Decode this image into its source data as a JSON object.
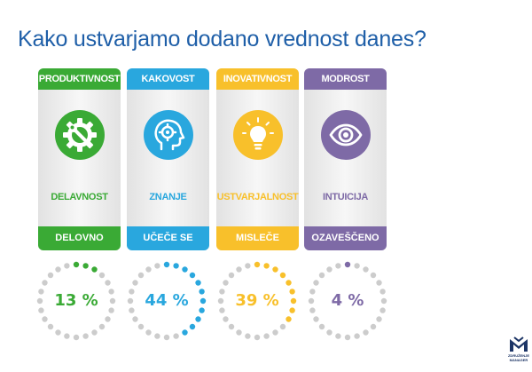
{
  "title": "Kako ustvarjamo dodano vrednost danes?",
  "cards": [
    {
      "top": "PRODUKTIVNOST",
      "middle": "DELAVNOST",
      "bottom": "DELOVNO",
      "icon": "gear-wrench-icon",
      "color": "#3aaa35",
      "percent_label": "13 %",
      "percent_value": 13
    },
    {
      "top": "KAKOVOST",
      "middle": "ZNANJE",
      "bottom": "UČEČE SE",
      "icon": "head-gear-icon",
      "color": "#29a7de",
      "percent_label": "44 %",
      "percent_value": 44
    },
    {
      "top": "INOVATIVNOST",
      "middle": "USTVARJALNOST",
      "bottom": "MISLEČE",
      "icon": "lightbulb-icon",
      "color": "#f8c02b",
      "percent_label": "39 %",
      "percent_value": 39
    },
    {
      "top": "MODROST",
      "middle": "INTUICIJA",
      "bottom": "OZAVEŠČENO",
      "icon": "eye-icon",
      "color": "#7e6aa6",
      "percent_label": "4 %",
      "percent_value": 4
    }
  ],
  "ring_inactive_color": "#cccccc",
  "logo": {
    "line1": "ZDRUŽENJE",
    "line2": "MANAGER",
    "icon": "manager-logo-icon",
    "color": "#1d3566"
  }
}
